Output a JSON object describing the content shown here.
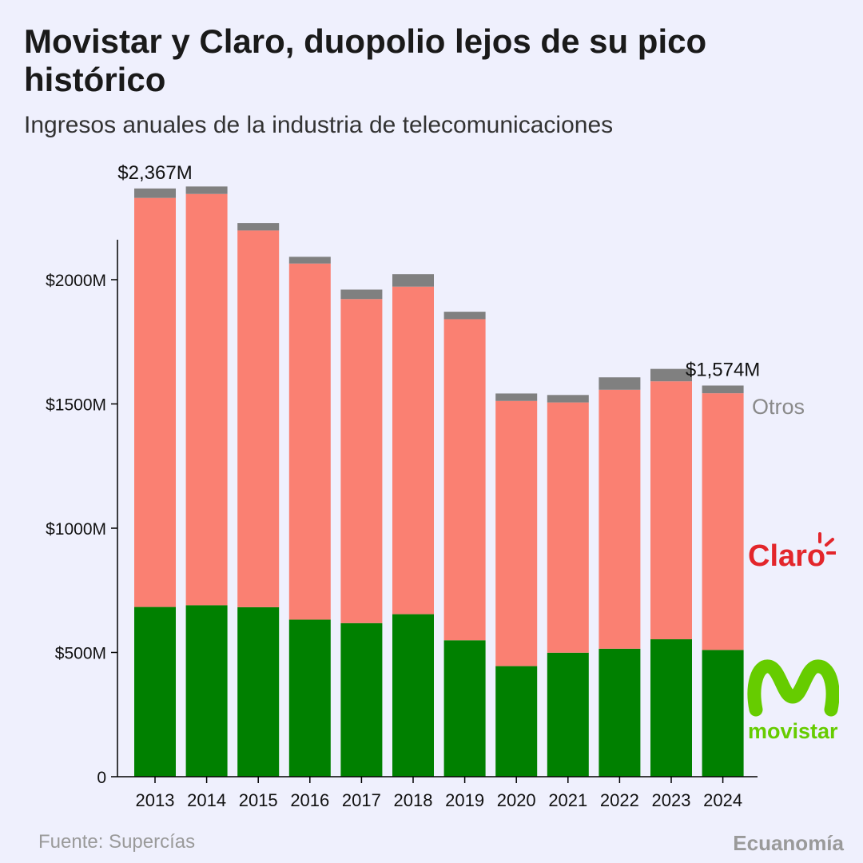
{
  "header": {
    "title": "Movistar y Claro, duopolio lejos de su pico histórico",
    "subtitle": "Ingresos anuales de la industria de telecomunicaciones"
  },
  "footer": {
    "source": "Fuente: Supercías",
    "brand": "Ecuanomía"
  },
  "logos": {
    "claro_text": "Claro",
    "movistar_text": "movistar"
  },
  "chart_data": {
    "type": "bar",
    "stacked": true,
    "categories": [
      "2013",
      "2014",
      "2015",
      "2016",
      "2017",
      "2018",
      "2019",
      "2020",
      "2021",
      "2022",
      "2023",
      "2024"
    ],
    "series": [
      {
        "name": "movistar",
        "color": "#008000",
        "values": [
          683,
          690,
          682,
          632,
          618,
          654,
          549,
          445,
          499,
          515,
          553,
          510
        ]
      },
      {
        "name": "Claro",
        "color": "#fa8072",
        "values": [
          1646,
          1655,
          1516,
          1433,
          1304,
          1318,
          1292,
          1067,
          1007,
          1042,
          1038,
          1033
        ]
      },
      {
        "name": "Otros",
        "color": "#808080",
        "values": [
          38,
          30,
          30,
          27,
          38,
          50,
          30,
          30,
          30,
          50,
          50,
          31
        ]
      }
    ],
    "totals": [
      2367,
      2375,
      2228,
      2092,
      1960,
      2022,
      1871,
      1542,
      1536,
      1607,
      1641,
      1574
    ],
    "annotations": [
      {
        "category": "2013",
        "text": "$2,367M"
      },
      {
        "category": "2024",
        "text": "$1,574M"
      }
    ],
    "ylim": [
      0,
      2400
    ],
    "yticks": [
      0,
      500,
      1000,
      1500,
      2000
    ],
    "ytick_labels": [
      "0",
      "$500M",
      "$1000M",
      "$1500M",
      "$2000M"
    ],
    "grid": false,
    "legend": "right, labels next to bars"
  }
}
